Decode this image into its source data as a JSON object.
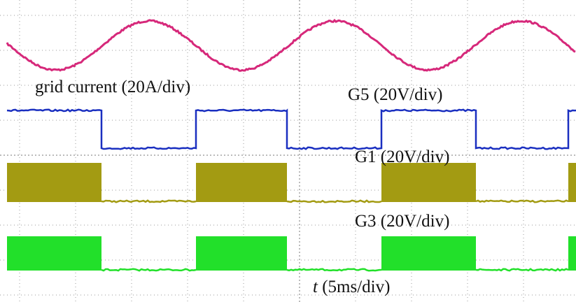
{
  "labels": {
    "grid_current": "grid current (20A/div)",
    "g5": "G5 (20V/div)",
    "g1": "G1 (20V/div)",
    "g3": "G3 (20V/div)",
    "time_symbol": "t",
    "time_unit": "(5ms/div)"
  }
}
